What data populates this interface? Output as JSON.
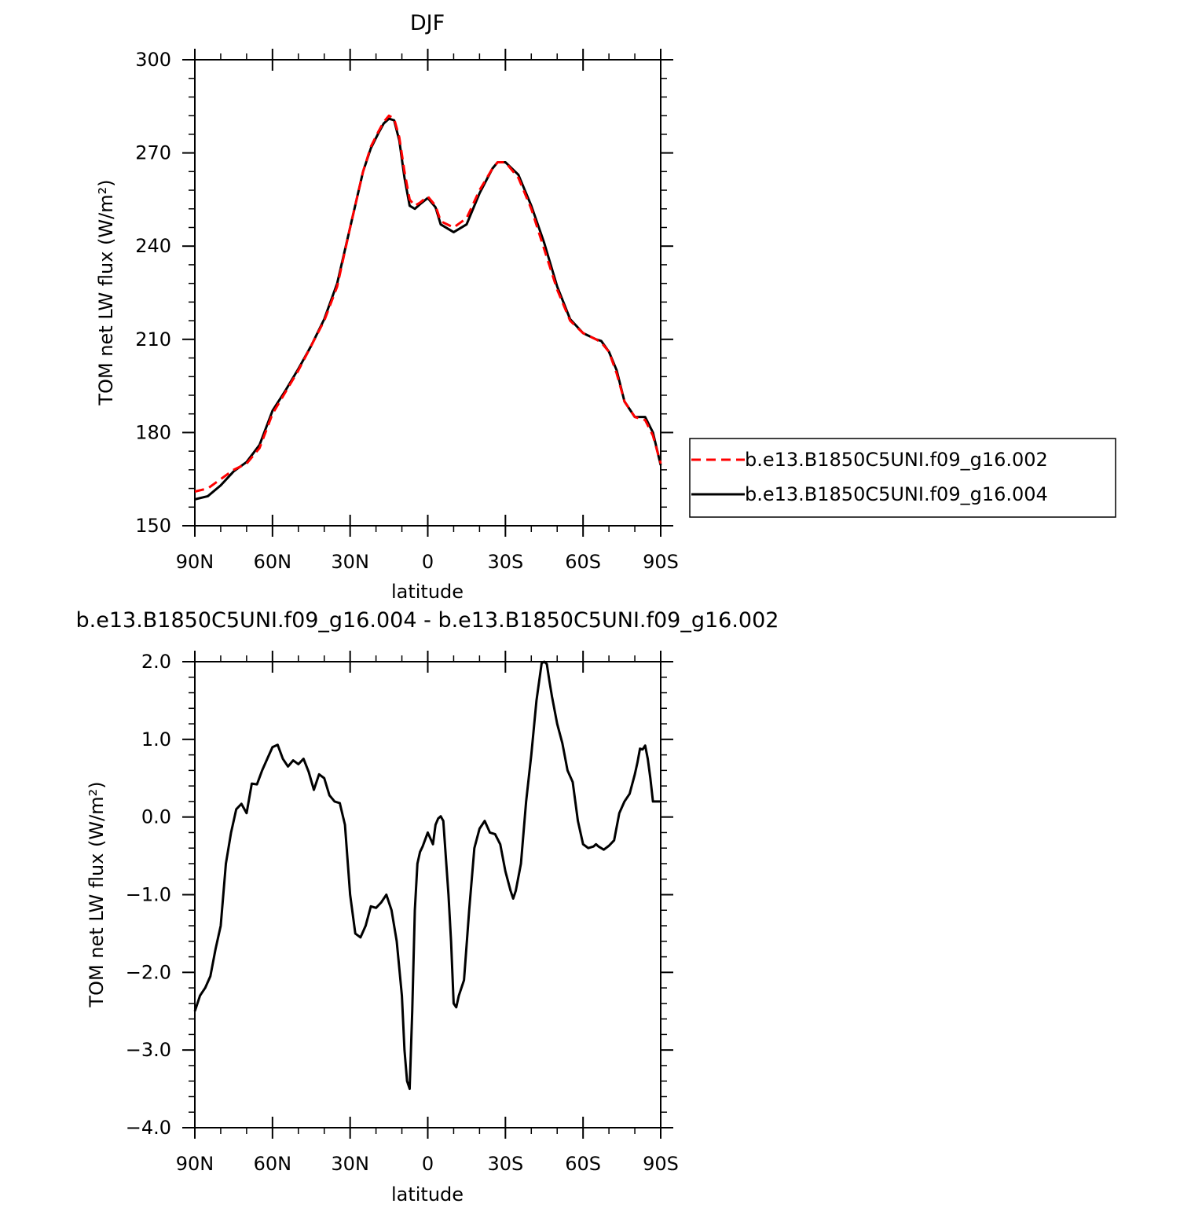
{
  "chart_data": [
    {
      "type": "line",
      "title": "DJF",
      "xlabel": "latitude",
      "ylabel": "TOM net LW flux (W/m²)",
      "xlim": [
        90,
        -90
      ],
      "ylim": [
        150,
        300
      ],
      "x_ticks": [
        90,
        60,
        30,
        0,
        -30,
        -60,
        -90
      ],
      "x_tick_labels": [
        "90N",
        "60N",
        "30N",
        "0",
        "30S",
        "60S",
        "90S"
      ],
      "y_ticks": [
        150,
        180,
        210,
        240,
        270,
        300
      ],
      "y_tick_labels": [
        "150",
        "180",
        "210",
        "240",
        "270",
        "300"
      ],
      "grid": false,
      "legend_position": "right",
      "series": [
        {
          "name": "b.e13.B1850C5UNI.f09_g16.002",
          "color": "#ff0000",
          "style": "dashed",
          "x": [
            90,
            85,
            80,
            75,
            70,
            65,
            60,
            55,
            50,
            45,
            40,
            35,
            30,
            25,
            22,
            19,
            17,
            15,
            13,
            11,
            9,
            7,
            5,
            3,
            0,
            -3,
            -5,
            -10,
            -15,
            -20,
            -25,
            -27,
            -30,
            -35,
            -40,
            -45,
            -50,
            -55,
            -60,
            -65,
            -67,
            -70,
            -73,
            -76,
            -80,
            -84,
            -87,
            -90
          ],
          "values": [
            161,
            162,
            165,
            168,
            170,
            175,
            186,
            193,
            200,
            208,
            216,
            227,
            246,
            264,
            272,
            277,
            280,
            282,
            281,
            275,
            264,
            255,
            253,
            254,
            256,
            253,
            248,
            246,
            249,
            258,
            265,
            267,
            267,
            262,
            252,
            239,
            226,
            216,
            212,
            210,
            209,
            206,
            199,
            190,
            185,
            184,
            179,
            170
          ]
        },
        {
          "name": "b.e13.B1850C5UNI.f09_g16.004",
          "color": "#000000",
          "style": "solid",
          "x": [
            90,
            85,
            80,
            75,
            70,
            65,
            60,
            55,
            50,
            45,
            40,
            35,
            30,
            25,
            22,
            19,
            17,
            15,
            13,
            11,
            9,
            7,
            5,
            3,
            0,
            -3,
            -5,
            -10,
            -15,
            -20,
            -25,
            -27,
            -30,
            -35,
            -40,
            -45,
            -50,
            -55,
            -60,
            -65,
            -67,
            -70,
            -73,
            -76,
            -80,
            -84,
            -87,
            -90
          ],
          "values": [
            158.5,
            159.5,
            163,
            167.5,
            170.5,
            176,
            187,
            193.5,
            200.5,
            208,
            216.5,
            228,
            246,
            264,
            271.5,
            276.5,
            279.5,
            281,
            280.5,
            274,
            262,
            253,
            252,
            253.5,
            255.5,
            252.5,
            247,
            244.5,
            247,
            257,
            265,
            267,
            267,
            263,
            253,
            241,
            227,
            216.5,
            212,
            210,
            209.5,
            206,
            200,
            190,
            185,
            185,
            180,
            169.5
          ]
        }
      ]
    },
    {
      "type": "line",
      "title": "b.e13.B1850C5UNI.f09_g16.004 - b.e13.B1850C5UNI.f09_g16.002",
      "xlabel": "latitude",
      "ylabel": "TOM net LW flux (W/m²)",
      "xlim": [
        90,
        -90
      ],
      "ylim": [
        -4.0,
        2.0
      ],
      "x_ticks": [
        90,
        60,
        30,
        0,
        -30,
        -60,
        -90
      ],
      "x_tick_labels": [
        "90N",
        "60N",
        "30N",
        "0",
        "30S",
        "60S",
        "90S"
      ],
      "y_ticks": [
        -4.0,
        -3.0,
        -2.0,
        -1.0,
        0.0,
        1.0,
        2.0
      ],
      "y_tick_labels": [
        "−4.0",
        "−3.0",
        "−2.0",
        "−1.0",
        "0.0",
        "1.0",
        "2.0"
      ],
      "grid": false,
      "series": [
        {
          "color": "#000000",
          "style": "solid",
          "x": [
            90,
            88,
            86,
            84,
            82,
            80,
            78,
            76,
            74,
            72,
            70,
            68,
            66,
            64,
            62,
            60,
            58,
            56,
            54,
            52,
            50,
            48,
            46,
            44,
            42,
            40,
            38,
            36,
            34,
            32,
            30,
            28,
            26,
            24,
            22,
            20,
            18,
            16,
            14,
            12,
            10,
            9,
            8,
            7,
            6,
            5,
            4,
            3,
            2,
            0,
            -2,
            -3,
            -4,
            -5,
            -6,
            -8,
            -9,
            -10,
            -11,
            -12,
            -14,
            -16,
            -18,
            -20,
            -22,
            -24,
            -26,
            -28,
            -30,
            -32,
            -33,
            -34,
            -36,
            -38,
            -40,
            -42,
            -44,
            -45,
            -46,
            -47,
            -48,
            -50,
            -52,
            -54,
            -56,
            -58,
            -60,
            -62,
            -64,
            -65,
            -66,
            -68,
            -70,
            -72,
            -74,
            -76,
            -78,
            -80,
            -81,
            -82,
            -83,
            -84,
            -85,
            -86,
            -87,
            -88,
            -90
          ],
          "values": [
            -2.5,
            -2.3,
            -2.2,
            -2.05,
            -1.7,
            -1.4,
            -0.6,
            -0.2,
            0.1,
            0.17,
            0.05,
            0.43,
            0.42,
            0.6,
            0.75,
            0.9,
            0.93,
            0.75,
            0.65,
            0.73,
            0.68,
            0.75,
            0.58,
            0.35,
            0.55,
            0.5,
            0.28,
            0.2,
            0.18,
            -0.1,
            -1.0,
            -1.5,
            -1.55,
            -1.4,
            -1.15,
            -1.17,
            -1.1,
            -1.0,
            -1.2,
            -1.6,
            -2.3,
            -3.0,
            -3.4,
            -3.5,
            -2.5,
            -1.2,
            -0.6,
            -0.45,
            -0.38,
            -0.2,
            -0.35,
            -0.1,
            -0.02,
            0.01,
            -0.05,
            -1.0,
            -1.6,
            -2.4,
            -2.45,
            -2.3,
            -2.1,
            -1.2,
            -0.4,
            -0.15,
            -0.05,
            -0.2,
            -0.22,
            -0.35,
            -0.7,
            -0.95,
            -1.05,
            -0.95,
            -0.6,
            0.2,
            0.8,
            1.5,
            1.98,
            2.0,
            1.97,
            1.75,
            1.55,
            1.2,
            0.95,
            0.6,
            0.45,
            -0.05,
            -0.35,
            -0.4,
            -0.38,
            -0.35,
            -0.38,
            -0.42,
            -0.37,
            -0.3,
            0.05,
            0.2,
            0.3,
            0.55,
            0.7,
            0.88,
            0.87,
            0.92,
            0.75,
            0.5,
            0.2,
            0.2,
            0.2
          ]
        }
      ]
    }
  ]
}
